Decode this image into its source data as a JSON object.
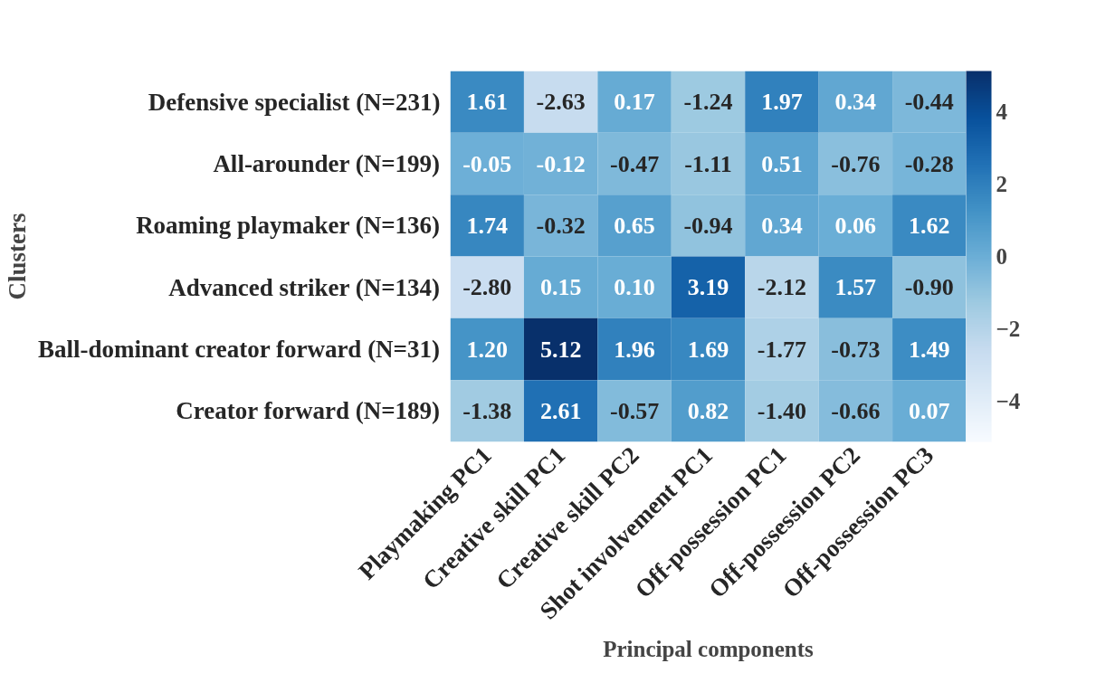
{
  "chart_data": {
    "type": "heatmap",
    "xlabel": "Principal components",
    "ylabel": "Clusters",
    "categories": [
      "Playmaking PC1",
      "Creative skill PC1",
      "Creative skill PC2",
      "Shot involvement PC1",
      "Off-possession PC1",
      "Off-possession PC2",
      "Off-possession PC3"
    ],
    "y_categories": [
      "Defensive specialist (N=231)",
      "All-arounder (N=199)",
      "Roaming playmaker (N=136)",
      "Advanced striker (N=134)",
      "Ball-dominant creator forward (N=31)",
      "Creator forward (N=189)"
    ],
    "cells": [
      [
        1.61,
        -2.63,
        0.17,
        -1.24,
        1.97,
        0.34,
        -0.44
      ],
      [
        -0.05,
        -0.12,
        -0.47,
        -1.11,
        0.51,
        -0.76,
        -0.28
      ],
      [
        1.74,
        -0.32,
        0.65,
        -0.94,
        0.34,
        0.06,
        1.62
      ],
      [
        -2.8,
        0.15,
        0.1,
        3.19,
        -2.12,
        1.57,
        -0.9
      ],
      [
        1.2,
        5.12,
        1.96,
        1.69,
        -1.77,
        -0.73,
        1.49
      ],
      [
        -1.38,
        2.61,
        -0.57,
        0.82,
        -1.4,
        -0.66,
        0.07
      ]
    ],
    "data_labels": true,
    "cell_labels": [
      [
        "1.61",
        "-2.63",
        "0.17",
        "-1.24",
        "1.97",
        "0.34",
        "-0.44"
      ],
      [
        "-0.05",
        "-0.12",
        "-0.47",
        "-1.11",
        "0.51",
        "-0.76",
        "-0.28"
      ],
      [
        "1.74",
        "-0.32",
        "0.65",
        "-0.94",
        "0.34",
        "0.06",
        "1.62"
      ],
      [
        "-2.80",
        "0.15",
        "0.10",
        "3.19",
        "-2.12",
        "1.57",
        "-0.90"
      ],
      [
        "1.20",
        "5.12",
        "1.96",
        "1.69",
        "-1.77",
        "-0.73",
        "1.49"
      ],
      [
        "-1.38",
        "2.61",
        "-0.57",
        "0.82",
        "-1.40",
        "-0.66",
        "0.07"
      ]
    ],
    "clim": [
      -5.12,
      5.12
    ],
    "cticks": [
      {
        "value": -4,
        "label": "−4"
      },
      {
        "value": -2,
        "label": "−2"
      },
      0,
      2,
      4
    ]
  }
}
